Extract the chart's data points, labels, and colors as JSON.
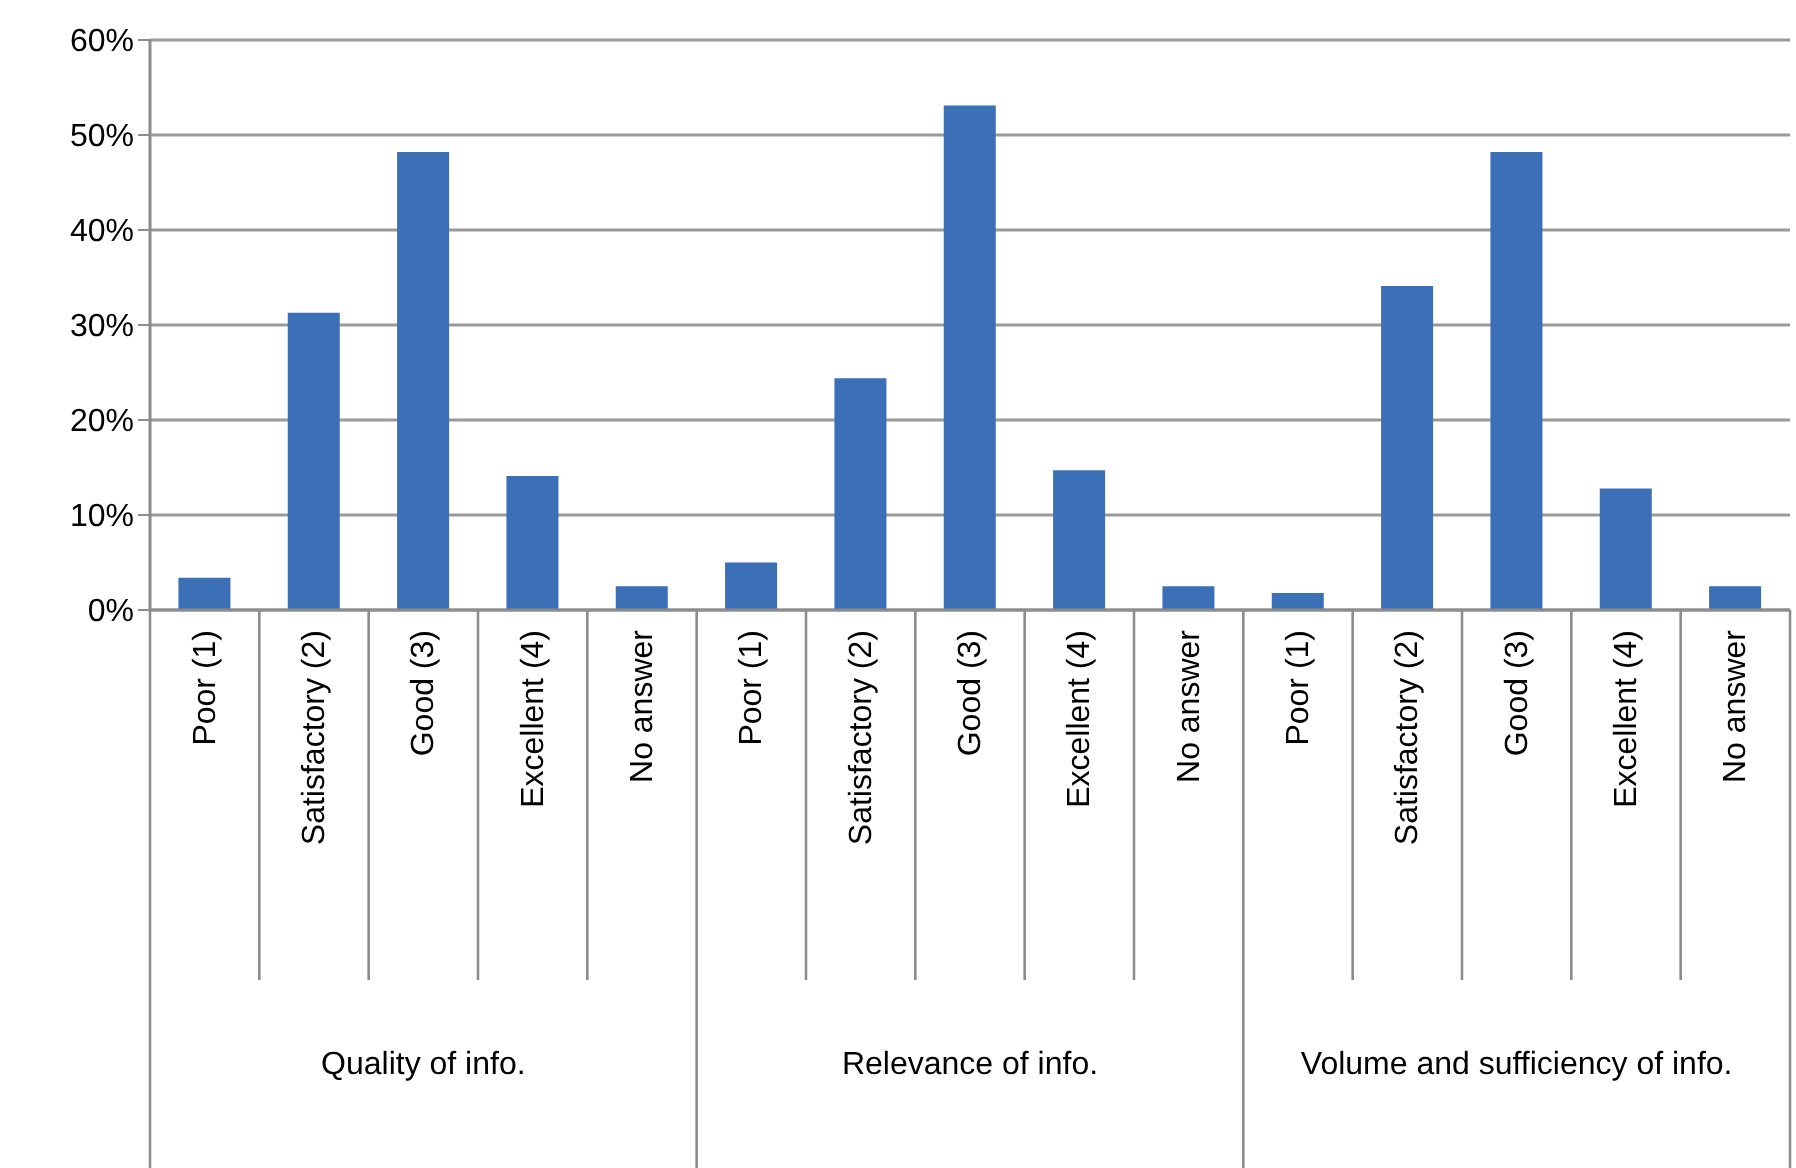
{
  "chart_data": {
    "type": "bar",
    "categories": [
      "Poor (1)",
      "Satisfactory (2)",
      "Good (3)",
      "Excellent (4)",
      "No answer",
      "Poor (1)",
      "Satisfactory (2)",
      "Good (3)",
      "Excellent (4)",
      "No answer",
      "Poor (1)",
      "Satisfactory (2)",
      "Good (3)",
      "Excellent (4)",
      "No answer"
    ],
    "values": [
      3.4,
      31.3,
      48.2,
      14.1,
      2.5,
      5.0,
      24.4,
      53.1,
      14.7,
      2.5,
      1.8,
      34.1,
      48.2,
      12.8,
      2.5
    ],
    "color": "#3b6fb6",
    "ylim": [
      0,
      60
    ],
    "yticks": [
      {
        "value": 0,
        "label": "0%"
      },
      {
        "value": 10,
        "label": "10%"
      },
      {
        "value": 20,
        "label": "20%"
      },
      {
        "value": 30,
        "label": "30%"
      },
      {
        "value": 40,
        "label": "40%"
      },
      {
        "value": 50,
        "label": "50%"
      },
      {
        "value": 60,
        "label": "60%"
      }
    ],
    "grid": "y",
    "annotations": [
      "Quality of info.",
      "Relevance of info.",
      "Volume and sufficiency of info."
    ]
  }
}
